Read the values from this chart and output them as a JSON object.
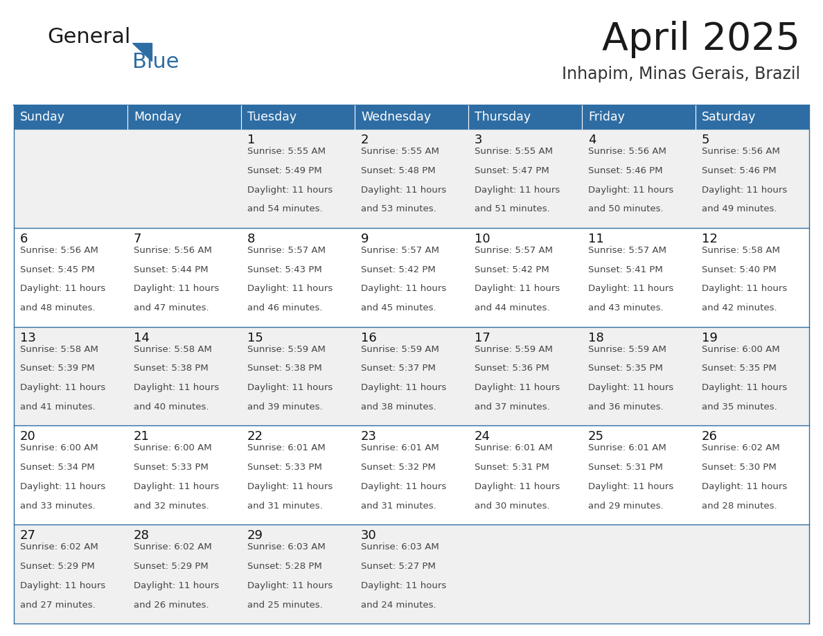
{
  "title": "April 2025",
  "subtitle": "Inhapim, Minas Gerais, Brazil",
  "header_bg": "#2E6DA4",
  "header_text_color": "#FFFFFF",
  "cell_bg_light": "#F0F0F0",
  "cell_bg_white": "#FFFFFF",
  "cell_border_color": "#2E6DA4",
  "day_num_color": "#111111",
  "content_color": "#444444",
  "logo_general_color": "#1a1a1a",
  "logo_blue_color": "#2E6DA4",
  "title_color": "#1a1a1a",
  "subtitle_color": "#333333",
  "days_of_week": [
    "Sunday",
    "Monday",
    "Tuesday",
    "Wednesday",
    "Thursday",
    "Friday",
    "Saturday"
  ],
  "weeks": [
    [
      {
        "day": "",
        "sunrise": "",
        "sunset": "",
        "daylight_h": "",
        "daylight_m": ""
      },
      {
        "day": "",
        "sunrise": "",
        "sunset": "",
        "daylight_h": "",
        "daylight_m": ""
      },
      {
        "day": "1",
        "sunrise": "5:55 AM",
        "sunset": "5:49 PM",
        "daylight_h": "11 hours",
        "daylight_m": "and 54 minutes."
      },
      {
        "day": "2",
        "sunrise": "5:55 AM",
        "sunset": "5:48 PM",
        "daylight_h": "11 hours",
        "daylight_m": "and 53 minutes."
      },
      {
        "day": "3",
        "sunrise": "5:55 AM",
        "sunset": "5:47 PM",
        "daylight_h": "11 hours",
        "daylight_m": "and 51 minutes."
      },
      {
        "day": "4",
        "sunrise": "5:56 AM",
        "sunset": "5:46 PM",
        "daylight_h": "11 hours",
        "daylight_m": "and 50 minutes."
      },
      {
        "day": "5",
        "sunrise": "5:56 AM",
        "sunset": "5:46 PM",
        "daylight_h": "11 hours",
        "daylight_m": "and 49 minutes."
      }
    ],
    [
      {
        "day": "6",
        "sunrise": "5:56 AM",
        "sunset": "5:45 PM",
        "daylight_h": "11 hours",
        "daylight_m": "and 48 minutes."
      },
      {
        "day": "7",
        "sunrise": "5:56 AM",
        "sunset": "5:44 PM",
        "daylight_h": "11 hours",
        "daylight_m": "and 47 minutes."
      },
      {
        "day": "8",
        "sunrise": "5:57 AM",
        "sunset": "5:43 PM",
        "daylight_h": "11 hours",
        "daylight_m": "and 46 minutes."
      },
      {
        "day": "9",
        "sunrise": "5:57 AM",
        "sunset": "5:42 PM",
        "daylight_h": "11 hours",
        "daylight_m": "and 45 minutes."
      },
      {
        "day": "10",
        "sunrise": "5:57 AM",
        "sunset": "5:42 PM",
        "daylight_h": "11 hours",
        "daylight_m": "and 44 minutes."
      },
      {
        "day": "11",
        "sunrise": "5:57 AM",
        "sunset": "5:41 PM",
        "daylight_h": "11 hours",
        "daylight_m": "and 43 minutes."
      },
      {
        "day": "12",
        "sunrise": "5:58 AM",
        "sunset": "5:40 PM",
        "daylight_h": "11 hours",
        "daylight_m": "and 42 minutes."
      }
    ],
    [
      {
        "day": "13",
        "sunrise": "5:58 AM",
        "sunset": "5:39 PM",
        "daylight_h": "11 hours",
        "daylight_m": "and 41 minutes."
      },
      {
        "day": "14",
        "sunrise": "5:58 AM",
        "sunset": "5:38 PM",
        "daylight_h": "11 hours",
        "daylight_m": "and 40 minutes."
      },
      {
        "day": "15",
        "sunrise": "5:59 AM",
        "sunset": "5:38 PM",
        "daylight_h": "11 hours",
        "daylight_m": "and 39 minutes."
      },
      {
        "day": "16",
        "sunrise": "5:59 AM",
        "sunset": "5:37 PM",
        "daylight_h": "11 hours",
        "daylight_m": "and 38 minutes."
      },
      {
        "day": "17",
        "sunrise": "5:59 AM",
        "sunset": "5:36 PM",
        "daylight_h": "11 hours",
        "daylight_m": "and 37 minutes."
      },
      {
        "day": "18",
        "sunrise": "5:59 AM",
        "sunset": "5:35 PM",
        "daylight_h": "11 hours",
        "daylight_m": "and 36 minutes."
      },
      {
        "day": "19",
        "sunrise": "6:00 AM",
        "sunset": "5:35 PM",
        "daylight_h": "11 hours",
        "daylight_m": "and 35 minutes."
      }
    ],
    [
      {
        "day": "20",
        "sunrise": "6:00 AM",
        "sunset": "5:34 PM",
        "daylight_h": "11 hours",
        "daylight_m": "and 33 minutes."
      },
      {
        "day": "21",
        "sunrise": "6:00 AM",
        "sunset": "5:33 PM",
        "daylight_h": "11 hours",
        "daylight_m": "and 32 minutes."
      },
      {
        "day": "22",
        "sunrise": "6:01 AM",
        "sunset": "5:33 PM",
        "daylight_h": "11 hours",
        "daylight_m": "and 31 minutes."
      },
      {
        "day": "23",
        "sunrise": "6:01 AM",
        "sunset": "5:32 PM",
        "daylight_h": "11 hours",
        "daylight_m": "and 31 minutes."
      },
      {
        "day": "24",
        "sunrise": "6:01 AM",
        "sunset": "5:31 PM",
        "daylight_h": "11 hours",
        "daylight_m": "and 30 minutes."
      },
      {
        "day": "25",
        "sunrise": "6:01 AM",
        "sunset": "5:31 PM",
        "daylight_h": "11 hours",
        "daylight_m": "and 29 minutes."
      },
      {
        "day": "26",
        "sunrise": "6:02 AM",
        "sunset": "5:30 PM",
        "daylight_h": "11 hours",
        "daylight_m": "and 28 minutes."
      }
    ],
    [
      {
        "day": "27",
        "sunrise": "6:02 AM",
        "sunset": "5:29 PM",
        "daylight_h": "11 hours",
        "daylight_m": "and 27 minutes."
      },
      {
        "day": "28",
        "sunrise": "6:02 AM",
        "sunset": "5:29 PM",
        "daylight_h": "11 hours",
        "daylight_m": "and 26 minutes."
      },
      {
        "day": "29",
        "sunrise": "6:03 AM",
        "sunset": "5:28 PM",
        "daylight_h": "11 hours",
        "daylight_m": "and 25 minutes."
      },
      {
        "day": "30",
        "sunrise": "6:03 AM",
        "sunset": "5:27 PM",
        "daylight_h": "11 hours",
        "daylight_m": "and 24 minutes."
      },
      {
        "day": "",
        "sunrise": "",
        "sunset": "",
        "daylight_h": "",
        "daylight_m": ""
      },
      {
        "day": "",
        "sunrise": "",
        "sunset": "",
        "daylight_h": "",
        "daylight_m": ""
      },
      {
        "day": "",
        "sunrise": "",
        "sunset": "",
        "daylight_h": "",
        "daylight_m": ""
      }
    ]
  ]
}
